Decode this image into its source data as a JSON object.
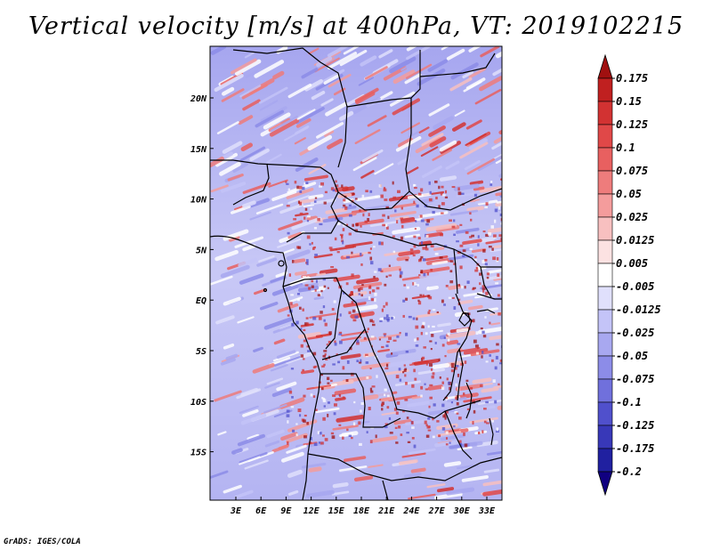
{
  "title": "Vertical velocity [m/s] at 400hPa, VT: 2019102215",
  "credit": "GrADS: IGES/COLA",
  "map": {
    "lat_labels": [
      "20N",
      "15N",
      "10N",
      "5N",
      "EQ",
      "5S",
      "10S",
      "15S"
    ],
    "lon_labels": [
      "3E",
      "6E",
      "9E",
      "12E",
      "15E",
      "18E",
      "21E",
      "24E",
      "27E",
      "30E",
      "33E"
    ]
  },
  "colorbar": {
    "levels": [
      "0.175",
      "0.15",
      "0.125",
      "0.1",
      "0.075",
      "0.05",
      "0.025",
      "0.0125",
      "0.005",
      "-0.005",
      "-0.0125",
      "-0.025",
      "-0.05",
      "-0.075",
      "-0.1",
      "-0.125",
      "-0.175",
      "-0.2"
    ],
    "colors_top_to_bottom": [
      "#a01010",
      "#c02020",
      "#d23232",
      "#e04848",
      "#e86060",
      "#ee7c7c",
      "#f49c9c",
      "#f8c0c0",
      "#fce2e2",
      "#ffffff",
      "#e0e0fc",
      "#c4c4f8",
      "#a8a8f0",
      "#8c8ce8",
      "#7070dc",
      "#5050cc",
      "#3838b8",
      "#2020a0",
      "#100080"
    ]
  }
}
